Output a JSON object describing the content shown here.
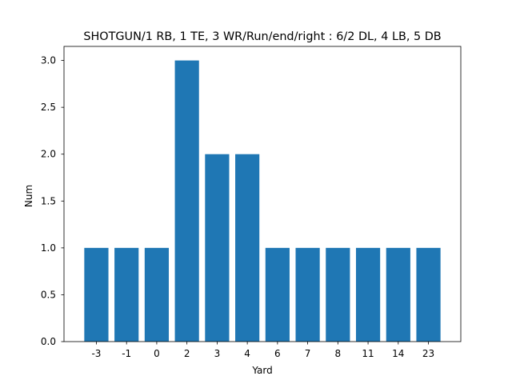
{
  "chart_data": {
    "type": "bar",
    "title": "SHOTGUN/1 RB, 1 TE, 3 WR/Run/end/right : 6/2 DL, 4 LB, 5 DB",
    "xlabel": "Yard",
    "ylabel": "Num",
    "categories": [
      "-3",
      "-1",
      "0",
      "2",
      "3",
      "4",
      "6",
      "7",
      "8",
      "11",
      "14",
      "23"
    ],
    "values": [
      1,
      1,
      1,
      3,
      2,
      2,
      1,
      1,
      1,
      1,
      1,
      1
    ],
    "ylim": [
      0,
      3.15
    ],
    "yticks": [
      "0.0",
      "0.5",
      "1.0",
      "1.5",
      "2.0",
      "2.5",
      "3.0"
    ],
    "bar_color": "#1f77b4",
    "grid": false,
    "legend": "none"
  }
}
